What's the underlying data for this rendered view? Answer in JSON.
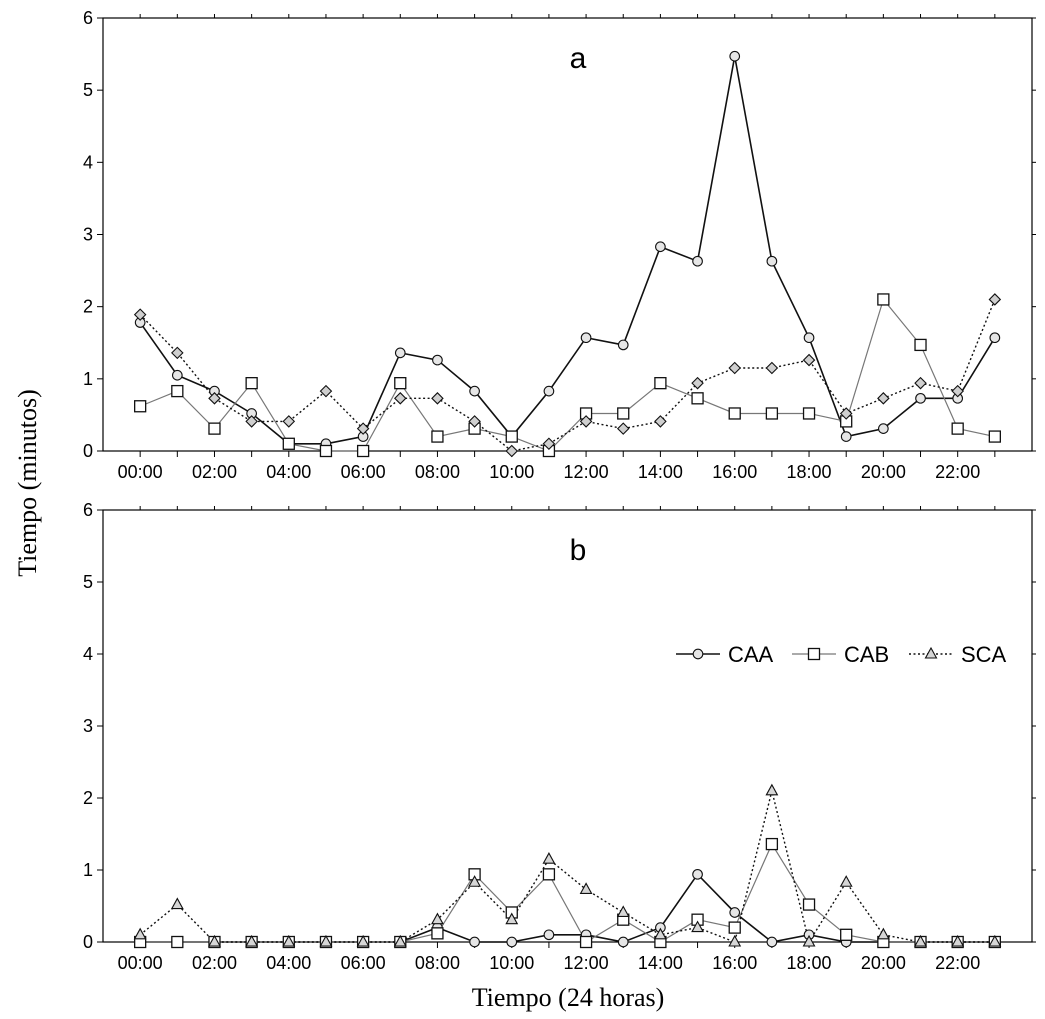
{
  "figure": {
    "ylabel": "Tiempo (minutos)",
    "xlabel": "Tiempo (24 horas)"
  },
  "chart_data": [
    {
      "type": "line",
      "panel_label": "a",
      "x_tick_labels": [
        "00:00",
        "02:00",
        "04:00",
        "06:00",
        "08:00",
        "10:00",
        "12:00",
        "14:00",
        "16:00",
        "18:00",
        "20:00",
        "22:00"
      ],
      "y_ticks": [
        0,
        1,
        2,
        3,
        4,
        5,
        6
      ],
      "ylim": [
        0,
        6
      ],
      "xlim": [
        -1,
        24
      ],
      "x": [
        0,
        1,
        2,
        3,
        4,
        5,
        6,
        7,
        8,
        9,
        10,
        11,
        12,
        13,
        14,
        15,
        16,
        17,
        18,
        19,
        20,
        21,
        22,
        23
      ],
      "series": [
        {
          "name": "CAA",
          "marker": "circle",
          "style": "solid-dark",
          "values": [
            1.78,
            1.05,
            0.83,
            0.52,
            0.1,
            0.1,
            0.2,
            1.36,
            1.26,
            0.83,
            0.2,
            0.83,
            1.57,
            1.47,
            2.83,
            2.63,
            5.47,
            2.63,
            1.57,
            0.2,
            0.31,
            0.73,
            0.73,
            1.57
          ]
        },
        {
          "name": "CAB",
          "marker": "square",
          "style": "solid-gray",
          "values": [
            0.62,
            0.83,
            0.31,
            0.94,
            0.1,
            0.0,
            0.0,
            0.94,
            0.2,
            0.31,
            0.2,
            0.0,
            0.52,
            0.52,
            0.94,
            0.73,
            0.52,
            0.52,
            0.52,
            0.41,
            2.1,
            1.47,
            0.31,
            0.2
          ]
        },
        {
          "name": "",
          "marker": "diamond",
          "style": "dotted",
          "values": [
            1.89,
            1.36,
            0.73,
            0.41,
            0.41,
            0.83,
            0.31,
            0.73,
            0.73,
            0.41,
            0.0,
            0.1,
            0.41,
            0.31,
            0.41,
            0.94,
            1.15,
            1.15,
            1.26,
            0.52,
            0.73,
            0.94,
            0.83,
            2.1
          ]
        }
      ]
    },
    {
      "type": "line",
      "panel_label": "b",
      "x_tick_labels": [
        "00:00",
        "02:00",
        "04:00",
        "06:00",
        "08:00",
        "10:00",
        "12:00",
        "14:00",
        "16:00",
        "18:00",
        "20:00",
        "22:00"
      ],
      "y_ticks": [
        0,
        1,
        2,
        3,
        4,
        5,
        6
      ],
      "ylim": [
        0,
        6
      ],
      "xlim": [
        -1,
        24
      ],
      "legend_position": "right",
      "x": [
        0,
        1,
        2,
        3,
        4,
        5,
        6,
        7,
        8,
        9,
        10,
        11,
        12,
        13,
        14,
        15,
        16,
        17,
        18,
        19,
        20,
        21,
        22,
        23
      ],
      "series": [
        {
          "name": "CAA",
          "marker": "circle",
          "style": "solid-dark",
          "values": [
            0,
            0,
            0,
            0,
            0,
            0,
            0,
            0,
            0.2,
            0,
            0,
            0.1,
            0.1,
            0,
            0.2,
            0.94,
            0.41,
            0,
            0.1,
            0,
            0,
            0,
            0,
            0
          ]
        },
        {
          "name": "CAB",
          "marker": "square",
          "style": "solid-gray",
          "values": [
            0,
            0,
            0,
            0,
            0,
            0,
            0,
            0,
            0.12,
            0.94,
            0.41,
            0.94,
            0,
            0.31,
            0,
            0.31,
            0.2,
            1.36,
            0.52,
            0.1,
            0,
            0,
            0,
            0
          ]
        },
        {
          "name": "SCA",
          "marker": "triangle",
          "style": "dotted",
          "values": [
            0.1,
            0.52,
            0,
            0,
            0,
            0,
            0,
            0,
            0.31,
            0.83,
            0.31,
            1.15,
            0.73,
            0.41,
            0.1,
            0.2,
            0,
            2.1,
            0,
            0.83,
            0.1,
            0,
            0,
            0
          ]
        }
      ]
    }
  ]
}
